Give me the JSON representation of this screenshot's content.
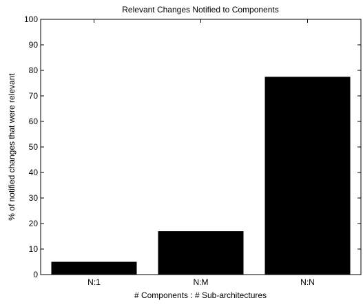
{
  "chart_data": {
    "type": "bar",
    "title": "Relevant Changes Notified to Components",
    "xlabel": "# Components : # Sub-architectures",
    "ylabel": "% of notified changes that were relevant",
    "categories": [
      "N:1",
      "N:M",
      "N:N"
    ],
    "values": [
      5,
      17,
      77.5
    ],
    "ylim": [
      0,
      100
    ],
    "yticks": [
      0,
      10,
      20,
      30,
      40,
      50,
      60,
      70,
      80,
      90,
      100
    ],
    "grid": false,
    "bar_color": "#000000"
  }
}
